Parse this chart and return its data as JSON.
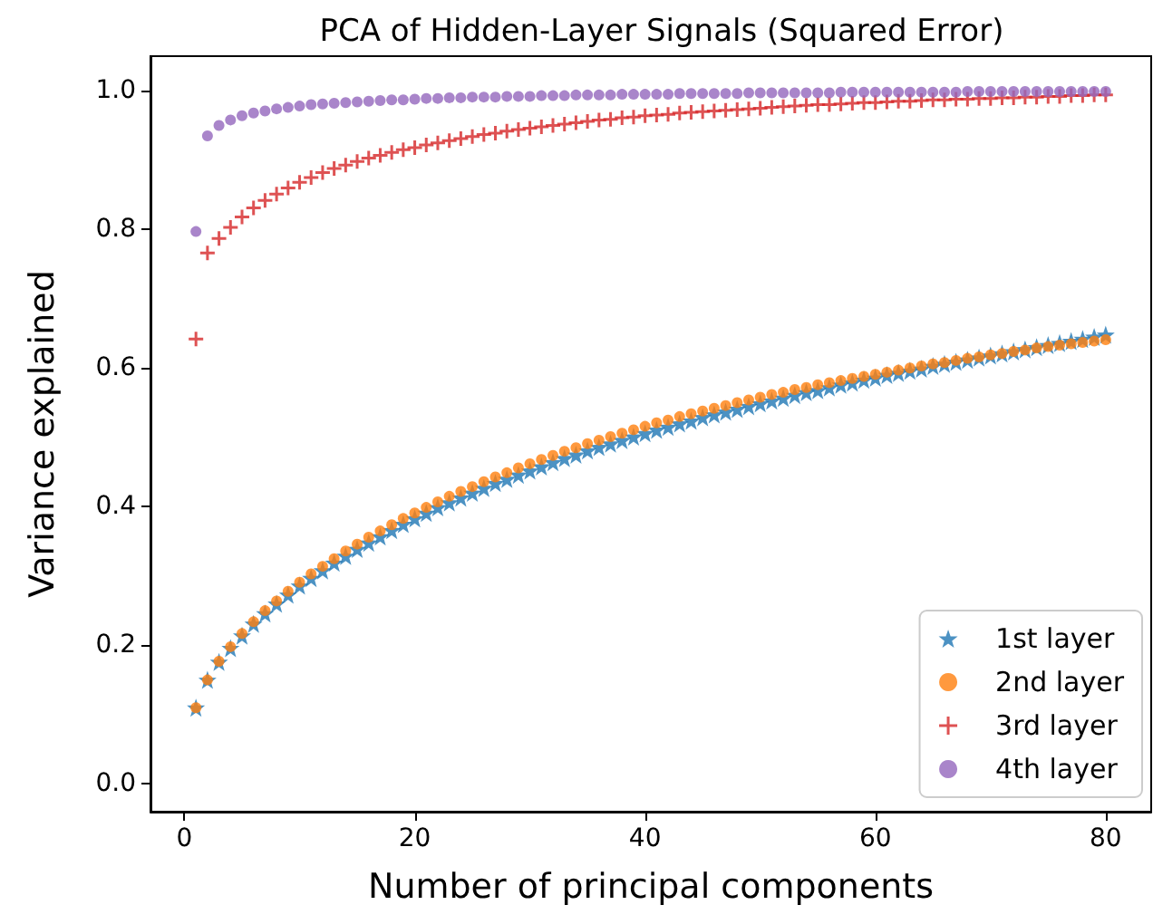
{
  "chart_data": {
    "type": "scatter",
    "title": "PCA of Hidden-Layer Signals (Squared Error)",
    "xlabel": "Number of principal components",
    "ylabel": "Variance explained",
    "x": [
      1,
      2,
      3,
      4,
      5,
      6,
      7,
      8,
      9,
      10,
      11,
      12,
      13,
      14,
      15,
      16,
      17,
      18,
      19,
      20,
      21,
      22,
      23,
      24,
      25,
      26,
      27,
      28,
      29,
      30,
      31,
      32,
      33,
      34,
      35,
      36,
      37,
      38,
      39,
      40,
      41,
      42,
      43,
      44,
      45,
      46,
      47,
      48,
      49,
      50,
      51,
      52,
      53,
      54,
      55,
      56,
      57,
      58,
      59,
      60,
      61,
      62,
      63,
      64,
      65,
      66,
      67,
      68,
      69,
      70,
      71,
      72,
      73,
      74,
      75,
      76,
      77,
      78,
      79,
      80
    ],
    "xlim": [
      -2.95,
      83.95
    ],
    "xticks": [
      0,
      20,
      40,
      60,
      80
    ],
    "ylim": [
      -0.04,
      1.05
    ],
    "yticks": [
      {
        "value": 0,
        "label": "0.0"
      },
      {
        "value": 0.2,
        "label": "0.2"
      },
      {
        "value": 0.4,
        "label": "0.4"
      },
      {
        "value": 0.6,
        "label": "0.6"
      },
      {
        "value": 0.8,
        "label": "0.8"
      },
      {
        "value": 1,
        "label": "1.0"
      }
    ],
    "grid": false,
    "legend": "bottom right",
    "series": [
      {
        "name": "1st layer",
        "color": "#1f77b4",
        "marker": "star",
        "values": [
          0.11,
          0.15,
          0.176,
          0.196,
          0.214,
          0.231,
          0.246,
          0.26,
          0.273,
          0.286,
          0.297,
          0.308,
          0.319,
          0.329,
          0.339,
          0.348,
          0.357,
          0.366,
          0.375,
          0.383,
          0.391,
          0.399,
          0.406,
          0.413,
          0.42,
          0.427,
          0.434,
          0.44,
          0.446,
          0.452,
          0.458,
          0.464,
          0.47,
          0.475,
          0.481,
          0.486,
          0.491,
          0.496,
          0.501,
          0.506,
          0.511,
          0.515,
          0.52,
          0.524,
          0.529,
          0.533,
          0.537,
          0.541,
          0.545,
          0.549,
          0.553,
          0.557,
          0.561,
          0.565,
          0.568,
          0.572,
          0.576,
          0.579,
          0.583,
          0.586,
          0.59,
          0.593,
          0.596,
          0.599,
          0.603,
          0.606,
          0.609,
          0.612,
          0.615,
          0.618,
          0.621,
          0.624,
          0.627,
          0.63,
          0.633,
          0.636,
          0.639,
          0.642,
          0.645,
          0.648
        ]
      },
      {
        "name": "2nd layer",
        "color": "#ff7f0e",
        "marker": "circle",
        "values": [
          0.11,
          0.15,
          0.177,
          0.198,
          0.217,
          0.234,
          0.25,
          0.264,
          0.278,
          0.291,
          0.303,
          0.314,
          0.325,
          0.336,
          0.346,
          0.356,
          0.365,
          0.374,
          0.383,
          0.391,
          0.399,
          0.407,
          0.415,
          0.422,
          0.429,
          0.436,
          0.443,
          0.449,
          0.456,
          0.462,
          0.468,
          0.474,
          0.48,
          0.485,
          0.491,
          0.496,
          0.501,
          0.506,
          0.511,
          0.516,
          0.521,
          0.525,
          0.53,
          0.534,
          0.538,
          0.542,
          0.546,
          0.55,
          0.554,
          0.558,
          0.562,
          0.565,
          0.569,
          0.572,
          0.576,
          0.579,
          0.582,
          0.585,
          0.588,
          0.591,
          0.594,
          0.597,
          0.6,
          0.603,
          0.606,
          0.608,
          0.611,
          0.614,
          0.616,
          0.619,
          0.621,
          0.624,
          0.626,
          0.629,
          0.631,
          0.633,
          0.635,
          0.637,
          0.639,
          0.641
        ]
      },
      {
        "name": "3rd layer",
        "color": "#d62728",
        "marker": "cross",
        "values": [
          0.642,
          0.766,
          0.787,
          0.803,
          0.818,
          0.831,
          0.842,
          0.851,
          0.86,
          0.868,
          0.875,
          0.882,
          0.888,
          0.893,
          0.898,
          0.903,
          0.907,
          0.911,
          0.915,
          0.918,
          0.922,
          0.925,
          0.928,
          0.931,
          0.934,
          0.937,
          0.939,
          0.942,
          0.944,
          0.946,
          0.948,
          0.95,
          0.952,
          0.954,
          0.956,
          0.958,
          0.959,
          0.961,
          0.962,
          0.964,
          0.965,
          0.966,
          0.968,
          0.969,
          0.97,
          0.971,
          0.972,
          0.973,
          0.974,
          0.975,
          0.976,
          0.977,
          0.978,
          0.979,
          0.98,
          0.98,
          0.981,
          0.982,
          0.983,
          0.983,
          0.984,
          0.985,
          0.985,
          0.986,
          0.987,
          0.987,
          0.988,
          0.988,
          0.989,
          0.989,
          0.99,
          0.99,
          0.991,
          0.991,
          0.992,
          0.992,
          0.993,
          0.993,
          0.994,
          0.994
        ]
      },
      {
        "name": "4th layer",
        "color": "#9467bd",
        "marker": "circle",
        "values": [
          0.797,
          0.935,
          0.95,
          0.958,
          0.964,
          0.968,
          0.971,
          0.974,
          0.976,
          0.978,
          0.98,
          0.981,
          0.982,
          0.983,
          0.984,
          0.985,
          0.986,
          0.987,
          0.987,
          0.988,
          0.989,
          0.989,
          0.99,
          0.99,
          0.991,
          0.991,
          0.991,
          0.992,
          0.992,
          0.992,
          0.993,
          0.993,
          0.993,
          0.994,
          0.994,
          0.994,
          0.994,
          0.995,
          0.995,
          0.995,
          0.995,
          0.995,
          0.996,
          0.996,
          0.996,
          0.996,
          0.996,
          0.996,
          0.997,
          0.997,
          0.997,
          0.997,
          0.997,
          0.997,
          0.997,
          0.997,
          0.998,
          0.998,
          0.998,
          0.998,
          0.998,
          0.998,
          0.998,
          0.998,
          0.998,
          0.998,
          0.998,
          0.999,
          0.999,
          0.999,
          0.999,
          0.999,
          0.999,
          0.999,
          0.999,
          0.999,
          0.999,
          0.999,
          0.999,
          0.999
        ]
      }
    ]
  }
}
